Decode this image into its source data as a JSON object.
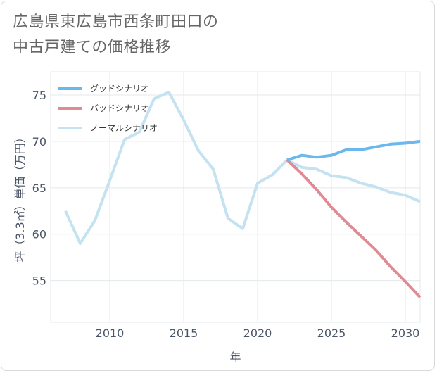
{
  "title_line1": "広島県東広島市西条町田口の",
  "title_line2": "中古戸建ての価格推移",
  "chart_data": {
    "type": "line",
    "xlabel": "年",
    "ylabel": "坪（3.3㎡）単価（万円）",
    "xlim": [
      2006,
      2031
    ],
    "ylim": [
      50.5,
      77.5
    ],
    "xticks": [
      2010,
      2015,
      2020,
      2025,
      2030
    ],
    "yticks": [
      55,
      60,
      65,
      70,
      75
    ],
    "legend_position": "top-left",
    "series": [
      {
        "name": "グッドシナリオ",
        "color": "#6ab8ee",
        "x": [
          2022,
          2023,
          2024,
          2025,
          2026,
          2027,
          2028,
          2029,
          2030,
          2031
        ],
        "values": [
          68.0,
          68.5,
          68.3,
          68.5,
          69.1,
          69.1,
          69.4,
          69.7,
          69.8,
          70.0
        ]
      },
      {
        "name": "バッドシナリオ",
        "color": "#e08a93",
        "x": [
          2022,
          2023,
          2024,
          2025,
          2026,
          2027,
          2028,
          2029,
          2030,
          2031
        ],
        "values": [
          68.0,
          66.5,
          64.8,
          62.9,
          61.3,
          59.8,
          58.3,
          56.5,
          54.9,
          53.2
        ]
      },
      {
        "name": "ノーマルシナリオ",
        "color": "#c4e2f0",
        "x": [
          2007,
          2008,
          2009,
          2010,
          2011,
          2012,
          2013,
          2014,
          2015,
          2016,
          2017,
          2018,
          2019,
          2020,
          2021,
          2022,
          2023,
          2024,
          2025,
          2026,
          2027,
          2028,
          2029,
          2030,
          2031
        ],
        "values": [
          62.5,
          59.0,
          61.5,
          65.8,
          70.2,
          71.0,
          74.6,
          75.3,
          72.3,
          69.0,
          67.0,
          61.7,
          60.6,
          65.5,
          66.4,
          68.0,
          67.2,
          67.0,
          66.3,
          66.1,
          65.5,
          65.1,
          64.5,
          64.2,
          63.5
        ]
      }
    ]
  }
}
